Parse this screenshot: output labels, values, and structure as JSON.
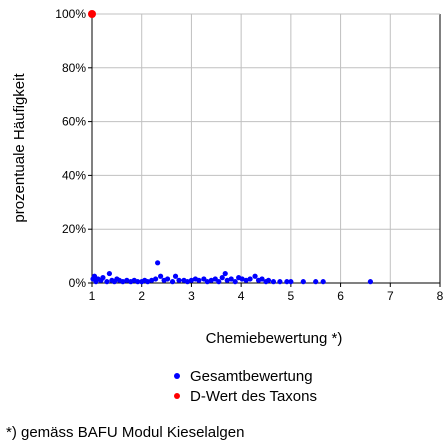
{
  "chart_data": {
    "type": "scatter",
    "title": "",
    "xlabel": "Chemiebewertung *)",
    "ylabel": "prozentuale Häufigkeit",
    "xlim": [
      1,
      8
    ],
    "ylim": [
      0,
      100
    ],
    "x_ticks": [
      "1",
      "2",
      "3",
      "4",
      "5",
      "6",
      "7",
      "8"
    ],
    "y_ticks": [
      "0%",
      "20%",
      "40%",
      "60%",
      "80%",
      "100%"
    ],
    "grid": true,
    "series": [
      {
        "name": "Gesamtbewertung",
        "color": "#0000ff",
        "points": [
          [
            1.02,
            1.5
          ],
          [
            1.05,
            2.5
          ],
          [
            1.08,
            0.5
          ],
          [
            1.12,
            1.5
          ],
          [
            1.18,
            1.0
          ],
          [
            1.22,
            2.0
          ],
          [
            1.3,
            0.5
          ],
          [
            1.35,
            3.5
          ],
          [
            1.4,
            1.0
          ],
          [
            1.45,
            0.5
          ],
          [
            1.5,
            1.5
          ],
          [
            1.55,
            1.0
          ],
          [
            1.62,
            0.5
          ],
          [
            1.7,
            1.0
          ],
          [
            1.78,
            0.5
          ],
          [
            1.85,
            1.0
          ],
          [
            1.92,
            0.5
          ],
          [
            2.0,
            0.5
          ],
          [
            2.06,
            1.0
          ],
          [
            2.12,
            0.5
          ],
          [
            2.2,
            1.0
          ],
          [
            2.28,
            1.5
          ],
          [
            2.32,
            7.5
          ],
          [
            2.38,
            2.5
          ],
          [
            2.45,
            1.0
          ],
          [
            2.52,
            1.5
          ],
          [
            2.62,
            0.5
          ],
          [
            2.68,
            2.5
          ],
          [
            2.75,
            1.0
          ],
          [
            2.85,
            1.0
          ],
          [
            2.92,
            0.5
          ],
          [
            3.0,
            1.0
          ],
          [
            3.08,
            1.5
          ],
          [
            3.15,
            1.0
          ],
          [
            3.25,
            1.5
          ],
          [
            3.32,
            0.5
          ],
          [
            3.4,
            1.0
          ],
          [
            3.48,
            1.5
          ],
          [
            3.55,
            0.5
          ],
          [
            3.62,
            2.0
          ],
          [
            3.68,
            3.5
          ],
          [
            3.72,
            1.0
          ],
          [
            3.8,
            1.5
          ],
          [
            3.88,
            0.5
          ],
          [
            3.95,
            2.0
          ],
          [
            4.02,
            1.5
          ],
          [
            4.1,
            1.0
          ],
          [
            4.18,
            1.5
          ],
          [
            4.28,
            2.5
          ],
          [
            4.35,
            1.0
          ],
          [
            4.42,
            1.5
          ],
          [
            4.5,
            0.5
          ],
          [
            4.55,
            1.0
          ],
          [
            4.65,
            0.5
          ],
          [
            4.78,
            0.5
          ],
          [
            4.92,
            0.5
          ],
          [
            5.0,
            0.5
          ],
          [
            5.25,
            0.5
          ],
          [
            5.5,
            0.5
          ],
          [
            5.65,
            0.5
          ],
          [
            6.6,
            0.5
          ]
        ]
      },
      {
        "name": "D-Wert des Taxons",
        "color": "#ff0000",
        "points": [
          [
            1.0,
            100
          ]
        ]
      }
    ],
    "footnote": "*) gemäss BAFU Modul Kieselalgen"
  }
}
